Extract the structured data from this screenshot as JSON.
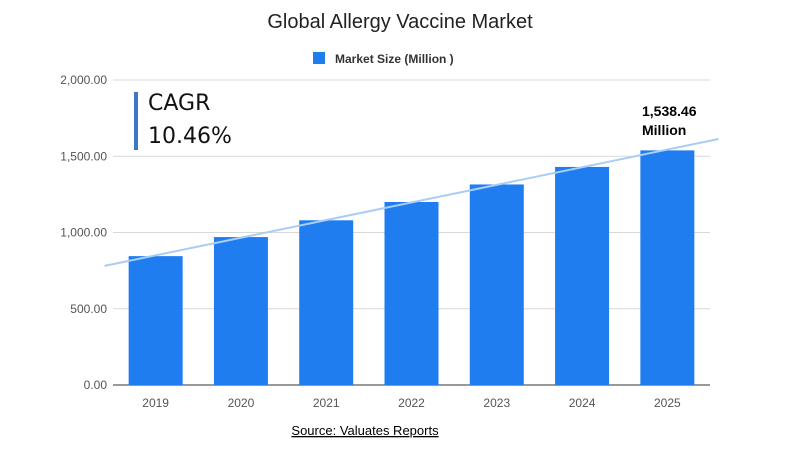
{
  "chart_data": {
    "type": "bar",
    "title": "Global Allergy Vaccine Market",
    "categories": [
      "2019",
      "2020",
      "2021",
      "2022",
      "2023",
      "2024",
      "2025"
    ],
    "series": [
      {
        "name": "Market Size (Million )",
        "values": [
          845,
          970,
          1080,
          1200,
          1315,
          1430,
          1538.46
        ]
      }
    ],
    "xlabel": "",
    "ylabel": "",
    "ylim": [
      0,
      2000
    ],
    "yticks": [
      "0.00",
      "500.00",
      "1,000.00",
      "1,500.00",
      "2,000.00"
    ],
    "trendline": true,
    "legend_position": "top-center",
    "bar_color": "#1f7df0",
    "trendline_color": "#a9cdf4",
    "annotations": {
      "cagr_label": "CAGR",
      "cagr_value": "10.46%",
      "last_value_line1": "1,538.46",
      "last_value_line2": "Million"
    },
    "source_text": "Source: Valuates Reports"
  }
}
